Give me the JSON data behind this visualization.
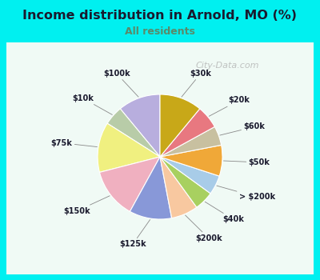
{
  "title": "Income distribution in Arnold, MO (%)",
  "subtitle": "All residents",
  "title_color": "#1a1a2e",
  "subtitle_color": "#5a8a6a",
  "bg_top_color": "#00f0f0",
  "chart_area_color": "#e0f5ee",
  "watermark": "City-Data.com",
  "labels": [
    "$100k",
    "$10k",
    "$75k",
    "$150k",
    "$125k",
    "$200k",
    "$40k",
    "> $200k",
    "$50k",
    "$60k",
    "$20k",
    "$30k"
  ],
  "values": [
    11,
    5,
    13,
    13,
    11,
    7,
    5,
    5,
    8,
    5,
    6,
    11
  ],
  "colors": [
    "#b8aede",
    "#b8cca8",
    "#f0f080",
    "#f0b0c0",
    "#8898d8",
    "#f8c8a0",
    "#a8d060",
    "#a8cce8",
    "#f0a838",
    "#c8c0a0",
    "#e87880",
    "#c8a818"
  ],
  "label_color": "#1a1a2e",
  "line_color": "#888888",
  "figsize": [
    4.0,
    3.5
  ],
  "dpi": 100
}
